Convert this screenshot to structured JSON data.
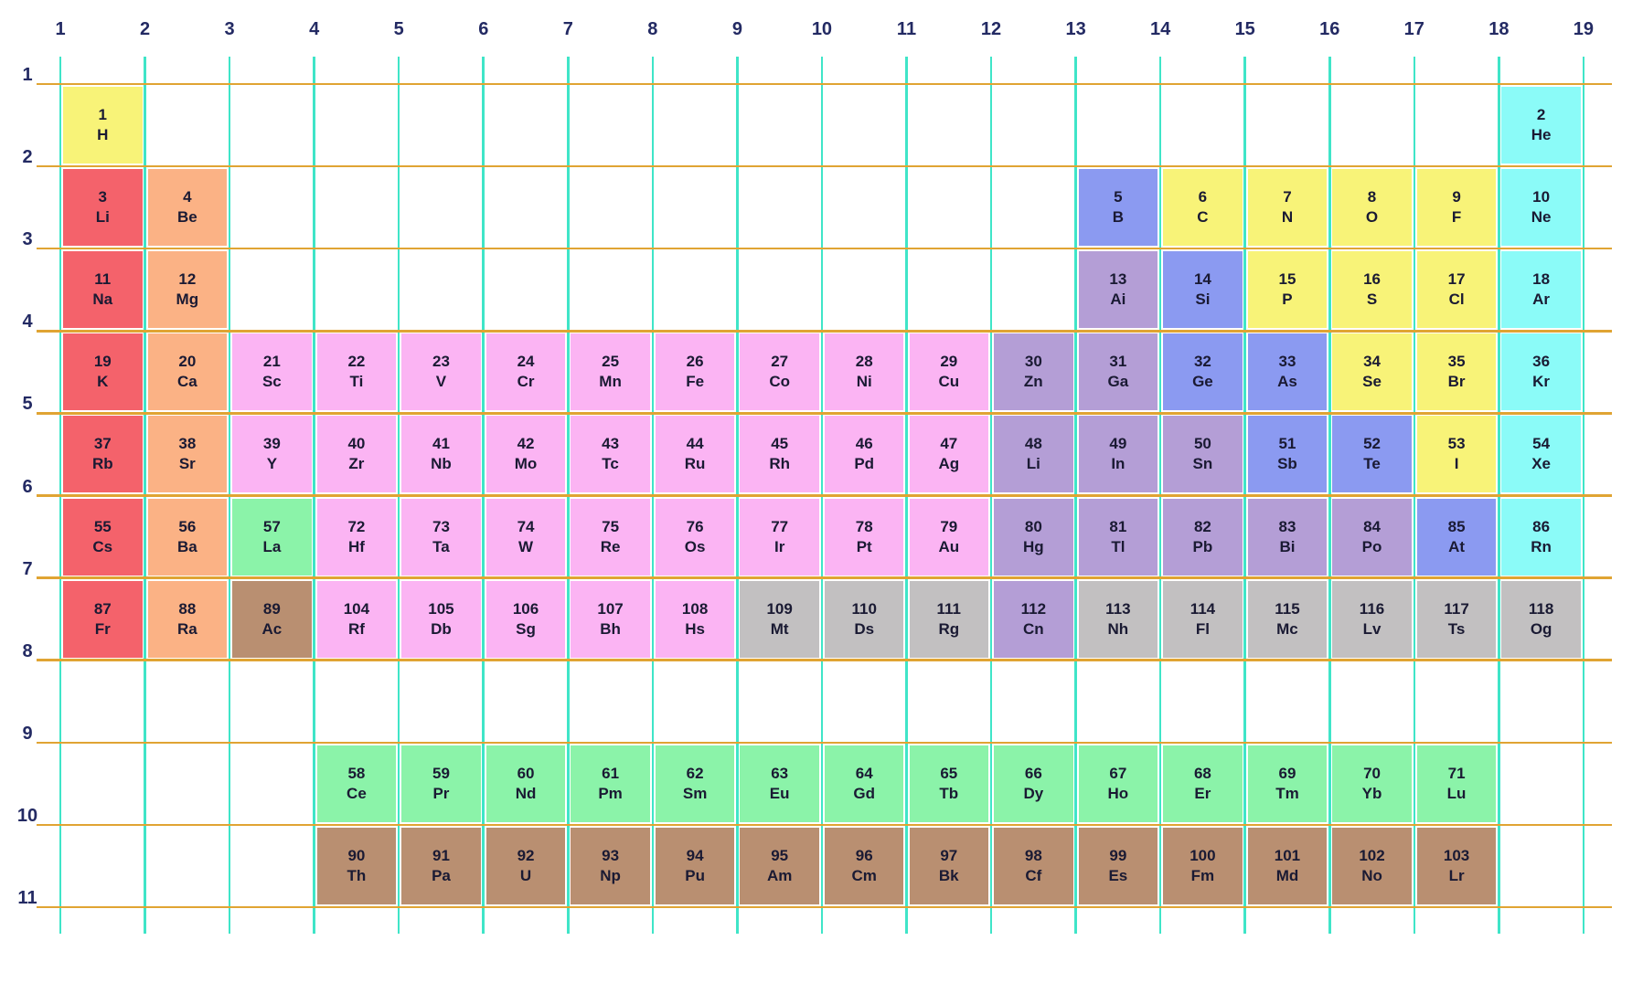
{
  "figure": {
    "title": "periodic-table-grid",
    "axis": {
      "column_labels": [
        "1",
        "2",
        "3",
        "4",
        "5",
        "6",
        "7",
        "8",
        "9",
        "10",
        "11",
        "12",
        "13",
        "14",
        "15",
        "16",
        "17",
        "18",
        "19"
      ],
      "row_labels": [
        "1",
        "2",
        "3",
        "4",
        "5",
        "6",
        "7",
        "8",
        "9",
        "10",
        "11"
      ]
    },
    "colors": {
      "nonmetal": "#F8F378",
      "noble": "#8BFBF8",
      "alkali": "#F4626B",
      "alkaline": "#FBB285",
      "transition": "#FBB4F3",
      "post": "#B49ED6",
      "metalloid": "#8B9AF1",
      "lanthanide": "#8BF3A9",
      "actinide": "#B98F71",
      "superheavy": "#C2C0C1",
      "grid_vertical": "#3FE5C8",
      "grid_horizontal": "#E0A433",
      "axis_label_text": "#232A63",
      "cell_text": "#1A1A33",
      "background": "#FFFFFF"
    },
    "elements": [
      {
        "n": "1",
        "s": "H",
        "r": 1,
        "c": 1,
        "cat": "nonmetal"
      },
      {
        "n": "2",
        "s": "He",
        "r": 1,
        "c": 18,
        "cat": "noble"
      },
      {
        "n": "3",
        "s": "Li",
        "r": 2,
        "c": 1,
        "cat": "alkali"
      },
      {
        "n": "4",
        "s": "Be",
        "r": 2,
        "c": 2,
        "cat": "alkaline"
      },
      {
        "n": "5",
        "s": "B",
        "r": 2,
        "c": 13,
        "cat": "metalloid"
      },
      {
        "n": "6",
        "s": "C",
        "r": 2,
        "c": 14,
        "cat": "nonmetal"
      },
      {
        "n": "7",
        "s": "N",
        "r": 2,
        "c": 15,
        "cat": "nonmetal"
      },
      {
        "n": "8",
        "s": "O",
        "r": 2,
        "c": 16,
        "cat": "nonmetal"
      },
      {
        "n": "9",
        "s": "F",
        "r": 2,
        "c": 17,
        "cat": "nonmetal"
      },
      {
        "n": "10",
        "s": "Ne",
        "r": 2,
        "c": 18,
        "cat": "noble"
      },
      {
        "n": "11",
        "s": "Na",
        "r": 3,
        "c": 1,
        "cat": "alkali"
      },
      {
        "n": "12",
        "s": "Mg",
        "r": 3,
        "c": 2,
        "cat": "alkaline"
      },
      {
        "n": "13",
        "s": "Ai",
        "r": 3,
        "c": 13,
        "cat": "post"
      },
      {
        "n": "14",
        "s": "Si",
        "r": 3,
        "c": 14,
        "cat": "metalloid"
      },
      {
        "n": "15",
        "s": "P",
        "r": 3,
        "c": 15,
        "cat": "nonmetal"
      },
      {
        "n": "16",
        "s": "S",
        "r": 3,
        "c": 16,
        "cat": "nonmetal"
      },
      {
        "n": "17",
        "s": "Cl",
        "r": 3,
        "c": 17,
        "cat": "nonmetal"
      },
      {
        "n": "18",
        "s": "Ar",
        "r": 3,
        "c": 18,
        "cat": "noble"
      },
      {
        "n": "19",
        "s": "K",
        "r": 4,
        "c": 1,
        "cat": "alkali"
      },
      {
        "n": "20",
        "s": "Ca",
        "r": 4,
        "c": 2,
        "cat": "alkaline"
      },
      {
        "n": "21",
        "s": "Sc",
        "r": 4,
        "c": 3,
        "cat": "transition"
      },
      {
        "n": "22",
        "s": "Ti",
        "r": 4,
        "c": 4,
        "cat": "transition"
      },
      {
        "n": "23",
        "s": "V",
        "r": 4,
        "c": 5,
        "cat": "transition"
      },
      {
        "n": "24",
        "s": "Cr",
        "r": 4,
        "c": 6,
        "cat": "transition"
      },
      {
        "n": "25",
        "s": "Mn",
        "r": 4,
        "c": 7,
        "cat": "transition"
      },
      {
        "n": "26",
        "s": "Fe",
        "r": 4,
        "c": 8,
        "cat": "transition"
      },
      {
        "n": "27",
        "s": "Co",
        "r": 4,
        "c": 9,
        "cat": "transition"
      },
      {
        "n": "28",
        "s": "Ni",
        "r": 4,
        "c": 10,
        "cat": "transition"
      },
      {
        "n": "29",
        "s": "Cu",
        "r": 4,
        "c": 11,
        "cat": "transition"
      },
      {
        "n": "30",
        "s": "Zn",
        "r": 4,
        "c": 12,
        "cat": "post"
      },
      {
        "n": "31",
        "s": "Ga",
        "r": 4,
        "c": 13,
        "cat": "post"
      },
      {
        "n": "32",
        "s": "Ge",
        "r": 4,
        "c": 14,
        "cat": "metalloid"
      },
      {
        "n": "33",
        "s": "As",
        "r": 4,
        "c": 15,
        "cat": "metalloid"
      },
      {
        "n": "34",
        "s": "Se",
        "r": 4,
        "c": 16,
        "cat": "nonmetal"
      },
      {
        "n": "35",
        "s": "Br",
        "r": 4,
        "c": 17,
        "cat": "nonmetal"
      },
      {
        "n": "36",
        "s": "Kr",
        "r": 4,
        "c": 18,
        "cat": "noble"
      },
      {
        "n": "37",
        "s": "Rb",
        "r": 5,
        "c": 1,
        "cat": "alkali"
      },
      {
        "n": "38",
        "s": "Sr",
        "r": 5,
        "c": 2,
        "cat": "alkaline"
      },
      {
        "n": "39",
        "s": "Y",
        "r": 5,
        "c": 3,
        "cat": "transition"
      },
      {
        "n": "40",
        "s": "Zr",
        "r": 5,
        "c": 4,
        "cat": "transition"
      },
      {
        "n": "41",
        "s": "Nb",
        "r": 5,
        "c": 5,
        "cat": "transition"
      },
      {
        "n": "42",
        "s": "Mo",
        "r": 5,
        "c": 6,
        "cat": "transition"
      },
      {
        "n": "43",
        "s": "Tc",
        "r": 5,
        "c": 7,
        "cat": "transition"
      },
      {
        "n": "44",
        "s": "Ru",
        "r": 5,
        "c": 8,
        "cat": "transition"
      },
      {
        "n": "45",
        "s": "Rh",
        "r": 5,
        "c": 9,
        "cat": "transition"
      },
      {
        "n": "46",
        "s": "Pd",
        "r": 5,
        "c": 10,
        "cat": "transition"
      },
      {
        "n": "47",
        "s": "Ag",
        "r": 5,
        "c": 11,
        "cat": "transition"
      },
      {
        "n": "48",
        "s": "Li",
        "r": 5,
        "c": 12,
        "cat": "post"
      },
      {
        "n": "49",
        "s": "In",
        "r": 5,
        "c": 13,
        "cat": "post"
      },
      {
        "n": "50",
        "s": "Sn",
        "r": 5,
        "c": 14,
        "cat": "post"
      },
      {
        "n": "51",
        "s": "Sb",
        "r": 5,
        "c": 15,
        "cat": "metalloid"
      },
      {
        "n": "52",
        "s": "Te",
        "r": 5,
        "c": 16,
        "cat": "metalloid"
      },
      {
        "n": "53",
        "s": "I",
        "r": 5,
        "c": 17,
        "cat": "nonmetal"
      },
      {
        "n": "54",
        "s": "Xe",
        "r": 5,
        "c": 18,
        "cat": "noble"
      },
      {
        "n": "55",
        "s": "Cs",
        "r": 6,
        "c": 1,
        "cat": "alkali"
      },
      {
        "n": "56",
        "s": "Ba",
        "r": 6,
        "c": 2,
        "cat": "alkaline"
      },
      {
        "n": "57",
        "s": "La",
        "r": 6,
        "c": 3,
        "cat": "lanthanide"
      },
      {
        "n": "72",
        "s": "Hf",
        "r": 6,
        "c": 4,
        "cat": "transition"
      },
      {
        "n": "73",
        "s": "Ta",
        "r": 6,
        "c": 5,
        "cat": "transition"
      },
      {
        "n": "74",
        "s": "W",
        "r": 6,
        "c": 6,
        "cat": "transition"
      },
      {
        "n": "75",
        "s": "Re",
        "r": 6,
        "c": 7,
        "cat": "transition"
      },
      {
        "n": "76",
        "s": "Os",
        "r": 6,
        "c": 8,
        "cat": "transition"
      },
      {
        "n": "77",
        "s": "Ir",
        "r": 6,
        "c": 9,
        "cat": "transition"
      },
      {
        "n": "78",
        "s": "Pt",
        "r": 6,
        "c": 10,
        "cat": "transition"
      },
      {
        "n": "79",
        "s": "Au",
        "r": 6,
        "c": 11,
        "cat": "transition"
      },
      {
        "n": "80",
        "s": "Hg",
        "r": 6,
        "c": 12,
        "cat": "post"
      },
      {
        "n": "81",
        "s": "Tl",
        "r": 6,
        "c": 13,
        "cat": "post"
      },
      {
        "n": "82",
        "s": "Pb",
        "r": 6,
        "c": 14,
        "cat": "post"
      },
      {
        "n": "83",
        "s": "Bi",
        "r": 6,
        "c": 15,
        "cat": "post"
      },
      {
        "n": "84",
        "s": "Po",
        "r": 6,
        "c": 16,
        "cat": "post"
      },
      {
        "n": "85",
        "s": "At",
        "r": 6,
        "c": 17,
        "cat": "metalloid"
      },
      {
        "n": "86",
        "s": "Rn",
        "r": 6,
        "c": 18,
        "cat": "noble"
      },
      {
        "n": "87",
        "s": "Fr",
        "r": 7,
        "c": 1,
        "cat": "alkali"
      },
      {
        "n": "88",
        "s": "Ra",
        "r": 7,
        "c": 2,
        "cat": "alkaline"
      },
      {
        "n": "89",
        "s": "Ac",
        "r": 7,
        "c": 3,
        "cat": "actinide"
      },
      {
        "n": "104",
        "s": "Rf",
        "r": 7,
        "c": 4,
        "cat": "transition"
      },
      {
        "n": "105",
        "s": "Db",
        "r": 7,
        "c": 5,
        "cat": "transition"
      },
      {
        "n": "106",
        "s": "Sg",
        "r": 7,
        "c": 6,
        "cat": "transition"
      },
      {
        "n": "107",
        "s": "Bh",
        "r": 7,
        "c": 7,
        "cat": "transition"
      },
      {
        "n": "108",
        "s": "Hs",
        "r": 7,
        "c": 8,
        "cat": "transition"
      },
      {
        "n": "109",
        "s": "Mt",
        "r": 7,
        "c": 9,
        "cat": "superheavy"
      },
      {
        "n": "110",
        "s": "Ds",
        "r": 7,
        "c": 10,
        "cat": "superheavy"
      },
      {
        "n": "111",
        "s": "Rg",
        "r": 7,
        "c": 11,
        "cat": "superheavy"
      },
      {
        "n": "112",
        "s": "Cn",
        "r": 7,
        "c": 12,
        "cat": "post"
      },
      {
        "n": "113",
        "s": "Nh",
        "r": 7,
        "c": 13,
        "cat": "superheavy"
      },
      {
        "n": "114",
        "s": "Fl",
        "r": 7,
        "c": 14,
        "cat": "superheavy"
      },
      {
        "n": "115",
        "s": "Mc",
        "r": 7,
        "c": 15,
        "cat": "superheavy"
      },
      {
        "n": "116",
        "s": "Lv",
        "r": 7,
        "c": 16,
        "cat": "superheavy"
      },
      {
        "n": "117",
        "s": "Ts",
        "r": 7,
        "c": 17,
        "cat": "superheavy"
      },
      {
        "n": "118",
        "s": "Og",
        "r": 7,
        "c": 18,
        "cat": "superheavy"
      },
      {
        "n": "58",
        "s": "Ce",
        "r": 9,
        "c": 4,
        "cat": "lanthanide"
      },
      {
        "n": "59",
        "s": "Pr",
        "r": 9,
        "c": 5,
        "cat": "lanthanide"
      },
      {
        "n": "60",
        "s": "Nd",
        "r": 9,
        "c": 6,
        "cat": "lanthanide"
      },
      {
        "n": "61",
        "s": "Pm",
        "r": 9,
        "c": 7,
        "cat": "lanthanide"
      },
      {
        "n": "62",
        "s": "Sm",
        "r": 9,
        "c": 8,
        "cat": "lanthanide"
      },
      {
        "n": "63",
        "s": "Eu",
        "r": 9,
        "c": 9,
        "cat": "lanthanide"
      },
      {
        "n": "64",
        "s": "Gd",
        "r": 9,
        "c": 10,
        "cat": "lanthanide"
      },
      {
        "n": "65",
        "s": "Tb",
        "r": 9,
        "c": 11,
        "cat": "lanthanide"
      },
      {
        "n": "66",
        "s": "Dy",
        "r": 9,
        "c": 12,
        "cat": "lanthanide"
      },
      {
        "n": "67",
        "s": "Ho",
        "r": 9,
        "c": 13,
        "cat": "lanthanide"
      },
      {
        "n": "68",
        "s": "Er",
        "r": 9,
        "c": 14,
        "cat": "lanthanide"
      },
      {
        "n": "69",
        "s": "Tm",
        "r": 9,
        "c": 15,
        "cat": "lanthanide"
      },
      {
        "n": "70",
        "s": "Yb",
        "r": 9,
        "c": 16,
        "cat": "lanthanide"
      },
      {
        "n": "71",
        "s": "Lu",
        "r": 9,
        "c": 17,
        "cat": "lanthanide"
      },
      {
        "n": "90",
        "s": "Th",
        "r": 10,
        "c": 4,
        "cat": "actinide"
      },
      {
        "n": "91",
        "s": "Pa",
        "r": 10,
        "c": 5,
        "cat": "actinide"
      },
      {
        "n": "92",
        "s": "U",
        "r": 10,
        "c": 6,
        "cat": "actinide"
      },
      {
        "n": "93",
        "s": "Np",
        "r": 10,
        "c": 7,
        "cat": "actinide"
      },
      {
        "n": "94",
        "s": "Pu",
        "r": 10,
        "c": 8,
        "cat": "actinide"
      },
      {
        "n": "95",
        "s": "Am",
        "r": 10,
        "c": 9,
        "cat": "actinide"
      },
      {
        "n": "96",
        "s": "Cm",
        "r": 10,
        "c": 10,
        "cat": "actinide"
      },
      {
        "n": "97",
        "s": "Bk",
        "r": 10,
        "c": 11,
        "cat": "actinide"
      },
      {
        "n": "98",
        "s": "Cf",
        "r": 10,
        "c": 12,
        "cat": "actinide"
      },
      {
        "n": "99",
        "s": "Es",
        "r": 10,
        "c": 13,
        "cat": "actinide"
      },
      {
        "n": "100",
        "s": "Fm",
        "r": 10,
        "c": 14,
        "cat": "actinide"
      },
      {
        "n": "101",
        "s": "Md",
        "r": 10,
        "c": 15,
        "cat": "actinide"
      },
      {
        "n": "102",
        "s": "No",
        "r": 10,
        "c": 16,
        "cat": "actinide"
      },
      {
        "n": "103",
        "s": "Lr",
        "r": 10,
        "c": 17,
        "cat": "actinide"
      }
    ]
  }
}
